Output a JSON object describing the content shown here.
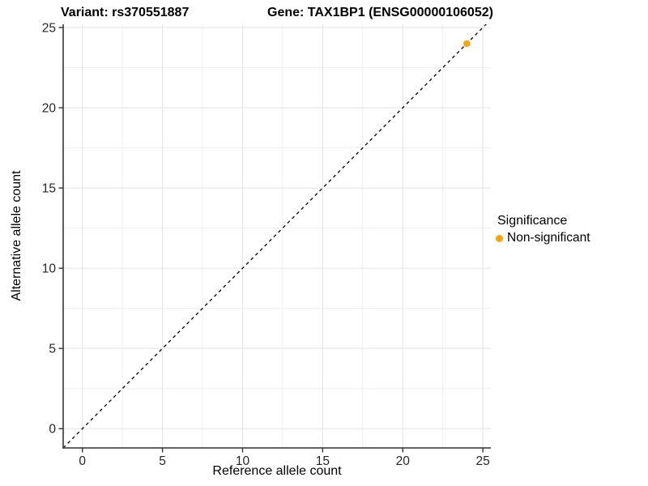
{
  "header": {
    "variant_title": "Variant: rs370551887",
    "gene_title": "Gene: TAX1BP1 (ENSG00000106052)"
  },
  "chart_data": {
    "type": "scatter",
    "title_variant": "Variant: rs370551887",
    "title_gene": "Gene: TAX1BP1 (ENSG00000106052)",
    "xlabel": "Reference allele count",
    "ylabel": "Alternative allele count",
    "xlim": [
      -1.2,
      25.5
    ],
    "ylim": [
      -1.2,
      25.2
    ],
    "x_ticks": [
      0,
      5,
      10,
      15,
      20,
      25
    ],
    "y_ticks": [
      0,
      5,
      10,
      15,
      20,
      25
    ],
    "x_minor_ticks": [
      2.5,
      7.5,
      12.5,
      17.5,
      22.5
    ],
    "y_minor_ticks": [
      2.5,
      7.5,
      12.5,
      17.5,
      22.5
    ],
    "grid": true,
    "points": [
      {
        "x": 24,
        "y": 24,
        "series": "Non-significant"
      }
    ],
    "reference_line": {
      "type": "identity y = x",
      "style": "dashed",
      "color": "#000000"
    },
    "legend": {
      "title": "Significance",
      "position": "right",
      "entries": [
        {
          "label": "Non-significant",
          "color": "#FFA500"
        }
      ]
    },
    "colors": {
      "point": "#FFA500",
      "grid_major": "#E3E3E3",
      "grid_minor": "#EFEFEF",
      "axis_line": "#4D4D4D",
      "tick_mark": "#333333",
      "tick_label": "#262626"
    }
  }
}
